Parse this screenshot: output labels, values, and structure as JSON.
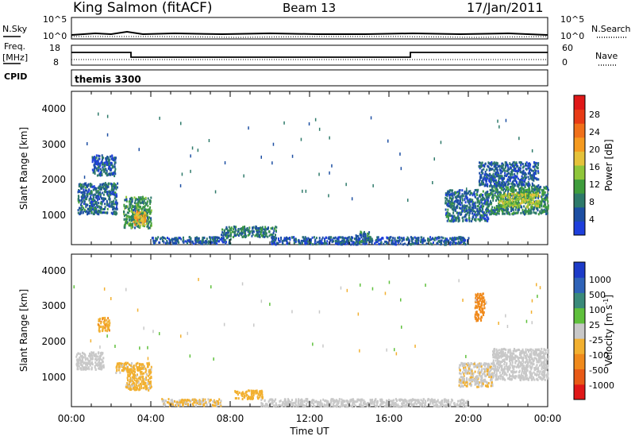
{
  "header": {
    "station": "King Salmon (fitACF)",
    "beam": "Beam 13",
    "date": "17/Jan/2011"
  },
  "sky_panel": {
    "left_label": "N.Sky",
    "right_label": "N.Search",
    "ticks_left": [
      "10^5",
      "10^0"
    ],
    "ticks_right": [
      "10^5",
      "10^0"
    ]
  },
  "freq_panel": {
    "left_label_1": "Freq.",
    "left_label_2": "[MHz]",
    "right_label": "Nave",
    "ticks_left": [
      "18",
      "8"
    ],
    "ticks_right": [
      "60",
      "0"
    ]
  },
  "cpid_panel": {
    "left_label": "CPID",
    "program": "themis 3300"
  },
  "x_axis": {
    "label": "Time UT",
    "ticks": [
      "00:00",
      "04:00",
      "08:00",
      "12:00",
      "16:00",
      "20:00",
      "00:00"
    ]
  },
  "power_panel": {
    "ylabel": "Slant Range [km]",
    "yticks": [
      "4000",
      "3000",
      "2000",
      "1000"
    ],
    "colorbar_label": "Power [dB]",
    "colorbar_ticks": [
      "28",
      "24",
      "20",
      "16",
      "12",
      "8",
      "4"
    ],
    "colors": [
      "#1e3fdc",
      "#1d4fa3",
      "#2e7a6a",
      "#3f9d3c",
      "#8fc63a",
      "#e5c23a",
      "#f59a1f",
      "#f0701a",
      "#e83b16",
      "#e01818"
    ]
  },
  "velocity_panel": {
    "ylabel": "Slant Range [km]",
    "yticks": [
      "4000",
      "3000",
      "2000",
      "1000"
    ],
    "colorbar_label": "Velocity [m s",
    "colorbar_label_sup": "-1",
    "colorbar_label_end": "]",
    "colorbar_ticks": [
      "1000",
      "500",
      "100",
      "25",
      "-25",
      "-100",
      "-500",
      "-1000"
    ],
    "colors": [
      "#1d3bc8",
      "#2f63b8",
      "#3a8a7a",
      "#5fc03c",
      "#c8c8c8",
      "#f2b030",
      "#f08a1c",
      "#e85a16",
      "#e01818"
    ]
  },
  "chart_data": [
    {
      "type": "heatmap",
      "title": "Power [dB]",
      "xlabel": "Time UT",
      "ylabel": "Slant Range [km]",
      "xlim": [
        0,
        24
      ],
      "ylim": [
        200,
        4600
      ],
      "color_range": [
        0,
        30
      ],
      "regions": [
        {
          "t0": 0.3,
          "t1": 2.3,
          "r0": 1100,
          "r1": 2000,
          "value": 6
        },
        {
          "t0": 2.6,
          "t1": 4.0,
          "r0": 700,
          "r1": 1600,
          "value": 9
        },
        {
          "t0": 3.1,
          "t1": 3.7,
          "r0": 800,
          "r1": 1200,
          "value": 18
        },
        {
          "t0": 1.0,
          "t1": 2.2,
          "r0": 2200,
          "r1": 2800,
          "value": 5
        },
        {
          "t0": 4.0,
          "t1": 8.0,
          "r0": 250,
          "r1": 450,
          "value": 5
        },
        {
          "t0": 7.5,
          "t1": 10.3,
          "r0": 450,
          "r1": 750,
          "value": 7
        },
        {
          "t0": 10.0,
          "t1": 20.0,
          "r0": 230,
          "r1": 450,
          "value": 5
        },
        {
          "t0": 14.3,
          "t1": 15.0,
          "r0": 300,
          "r1": 600,
          "value": 6
        },
        {
          "t0": 18.8,
          "t1": 21.0,
          "r0": 900,
          "r1": 1800,
          "value": 6
        },
        {
          "t0": 21.0,
          "t1": 24.0,
          "r0": 1100,
          "r1": 1900,
          "value": 8
        },
        {
          "t0": 21.5,
          "t1": 23.6,
          "r0": 1300,
          "r1": 1700,
          "value": 14
        },
        {
          "t0": 20.5,
          "t1": 23.5,
          "r0": 1900,
          "r1": 2600,
          "value": 5
        }
      ]
    },
    {
      "type": "heatmap",
      "title": "Velocity [m s-1]",
      "xlabel": "Time UT",
      "ylabel": "Slant Range [km]",
      "xlim": [
        0,
        24
      ],
      "ylim": [
        200,
        4600
      ],
      "color_range": [
        -1000,
        1000
      ],
      "regions": [
        {
          "t0": 0.2,
          "t1": 1.6,
          "r0": 1300,
          "r1": 1800,
          "value": 0
        },
        {
          "t0": 2.2,
          "t1": 2.8,
          "r0": 1200,
          "r1": 1500,
          "value": -150
        },
        {
          "t0": 2.7,
          "t1": 4.0,
          "r0": 700,
          "r1": 1500,
          "value": -150
        },
        {
          "t0": 1.3,
          "t1": 1.9,
          "r0": 2400,
          "r1": 2800,
          "value": -300
        },
        {
          "t0": 4.5,
          "t1": 7.5,
          "r0": 250,
          "r1": 450,
          "value": -120
        },
        {
          "t0": 8.2,
          "t1": 9.6,
          "r0": 450,
          "r1": 700,
          "value": -200
        },
        {
          "t0": 9.5,
          "t1": 20.0,
          "r0": 230,
          "r1": 450,
          "value": 0
        },
        {
          "t0": 19.5,
          "t1": 21.2,
          "r0": 800,
          "r1": 1500,
          "value": -80
        },
        {
          "t0": 21.2,
          "t1": 24.0,
          "r0": 1000,
          "r1": 1900,
          "value": 0
        },
        {
          "t0": 20.3,
          "t1": 20.8,
          "r0": 2700,
          "r1": 3500,
          "value": -500
        }
      ]
    }
  ]
}
